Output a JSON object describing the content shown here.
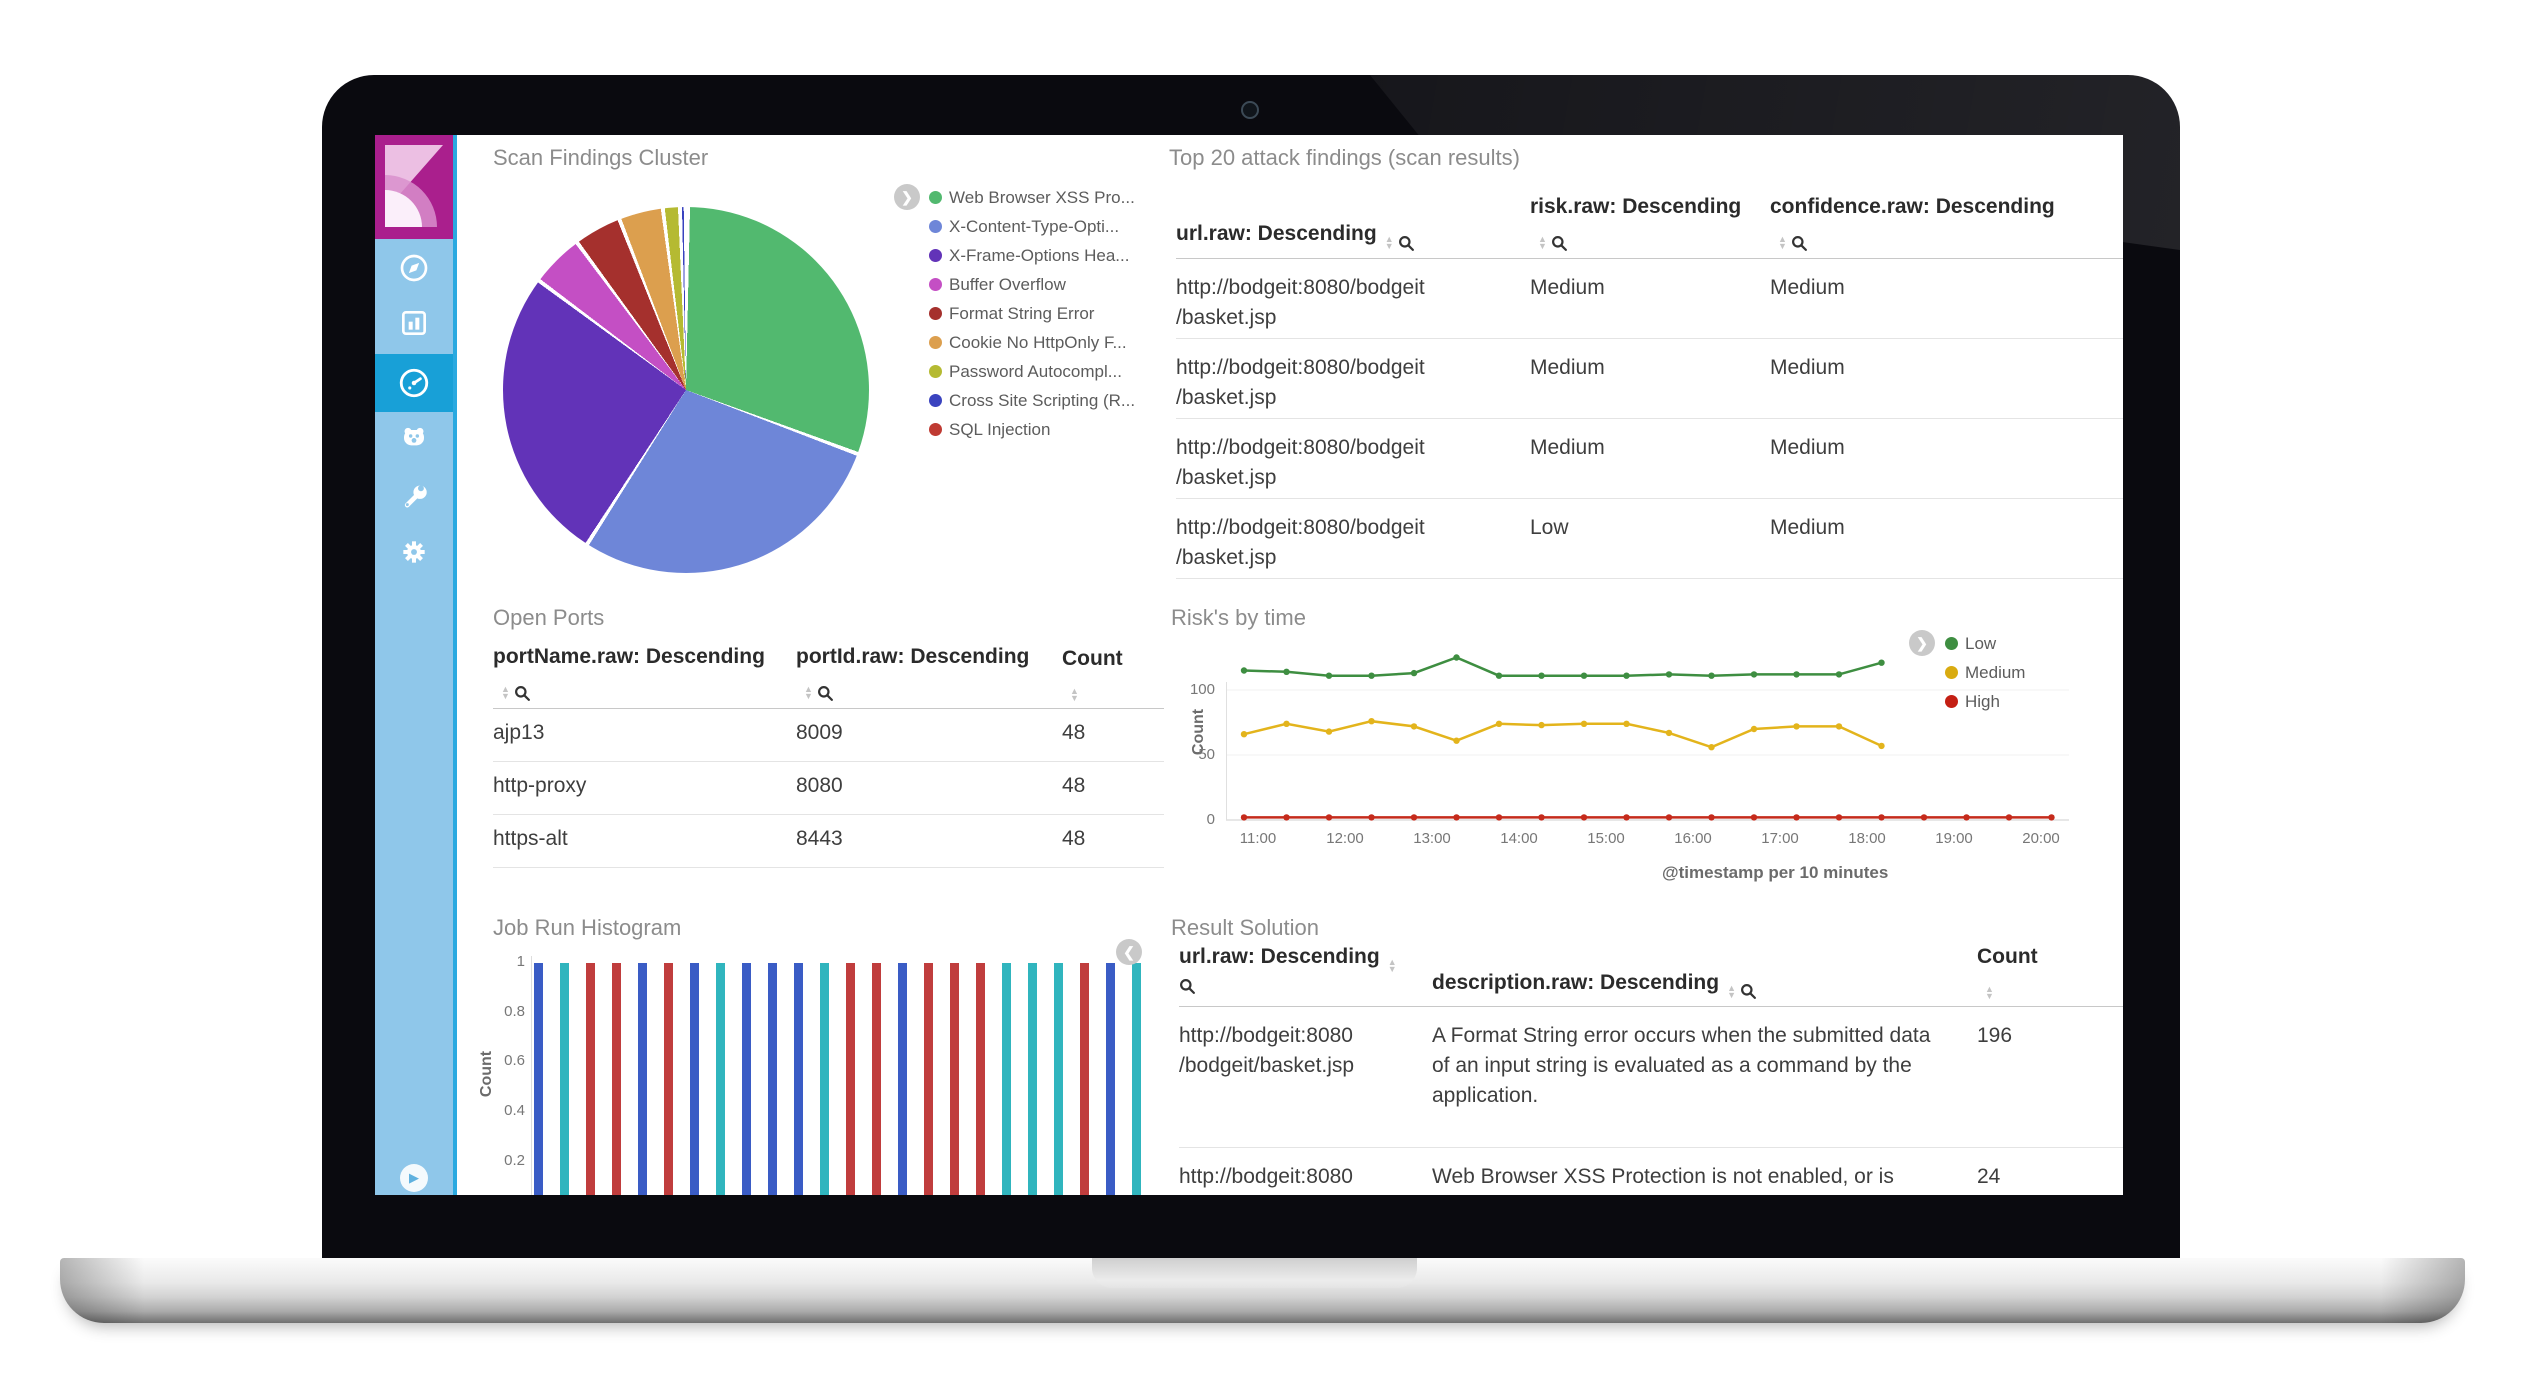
{
  "app": {
    "name": "Kibana dashboard on laptop"
  },
  "sidebar": {
    "logo_icon": "kibana-logo",
    "items": [
      {
        "icon": "compass-icon",
        "active": false
      },
      {
        "icon": "bar-chart-icon",
        "active": false
      },
      {
        "icon": "dashboard-gauge-icon",
        "active": true
      },
      {
        "icon": "timelion-face-icon",
        "active": false
      },
      {
        "icon": "wrench-icon",
        "active": false
      },
      {
        "icon": "gear-icon",
        "active": false
      }
    ],
    "collapse_icon": "chevron-right-icon",
    "colors": {
      "bg": "#8fc7ea",
      "active_bg": "#18a0d7",
      "border": "#2aa9e0",
      "logo_bg": "#aa1f8d"
    }
  },
  "panels": {
    "scan": {
      "title": "Scan Findings Cluster"
    },
    "top20": {
      "title": "Top 20 attack findings (scan results)"
    },
    "ports": {
      "title": "Open Ports"
    },
    "risk": {
      "title": "Risk's by time"
    },
    "histogram": {
      "title": "Job Run Histogram"
    },
    "result": {
      "title": "Result Solution"
    }
  },
  "tables": {
    "top20": {
      "columns": [
        {
          "label": "url.raw: Descending",
          "icons": "inline",
          "sort": true,
          "search": true
        },
        {
          "label": "risk.raw: Descending",
          "icons": "below",
          "sort": true,
          "search": true
        },
        {
          "label": "confidence.raw: Descending",
          "icons": "below",
          "sort": true,
          "search": true
        }
      ],
      "rows": [
        [
          [
            "http://bodgeit:8080/bodgeit",
            "/basket.jsp"
          ],
          "Medium",
          "Medium"
        ],
        [
          [
            "http://bodgeit:8080/bodgeit",
            "/basket.jsp"
          ],
          "Medium",
          "Medium"
        ],
        [
          [
            "http://bodgeit:8080/bodgeit",
            "/basket.jsp"
          ],
          "Medium",
          "Medium"
        ],
        [
          [
            "http://bodgeit:8080/bodgeit",
            "/basket.jsp"
          ],
          "Low",
          "Medium"
        ]
      ]
    },
    "ports": {
      "columns": [
        {
          "label": "portName.raw: Descending",
          "icons": "below",
          "sort": true,
          "search": true
        },
        {
          "label": "portId.raw: Descending",
          "icons": "below",
          "sort": true,
          "search": true
        },
        {
          "label": "Count",
          "icons": "below",
          "sort": true,
          "search": false
        }
      ],
      "rows": [
        [
          "ajp13",
          "8009",
          "48"
        ],
        [
          "http-proxy",
          "8080",
          "48"
        ],
        [
          "https-alt",
          "8443",
          "48"
        ]
      ]
    },
    "result": {
      "columns": [
        {
          "label": "url.raw: Descending",
          "icons": "split",
          "sort": true,
          "search": true
        },
        {
          "label": "description.raw: Descending",
          "icons": "inline",
          "sort": true,
          "search": true
        },
        {
          "label": "Count",
          "icons": "below",
          "sort": true,
          "search": false
        }
      ],
      "rows": [
        [
          [
            "http://bodgeit:8080",
            "/bodgeit/basket.jsp"
          ],
          "A Format String error occurs when the submitted data of an input string is evaluated as a command by the application.",
          "196"
        ],
        [
          [
            "http://bodgeit:8080"
          ],
          "Web Browser XSS Protection is not enabled, or is",
          "24"
        ]
      ]
    }
  },
  "chart_data": [
    {
      "type": "pie",
      "title": "Scan Findings Cluster",
      "labels": [
        "Web Browser XSS Pro...",
        "X-Content-Type-Opti...",
        "X-Frame-Options Hea...",
        "Buffer Overflow",
        "Format String Error",
        "Cookie No HttpOnly F...",
        "Password Autocompl...",
        "Cross Site Scripting (R...",
        "SQL Injection"
      ],
      "values_pct": [
        30.5,
        28.4,
        26.1,
        4.7,
        4.2,
        3.9,
        1.5,
        0.5,
        0.2
      ],
      "colors": [
        "#52b96f",
        "#6e86d8",
        "#6233b8",
        "#c44fc4",
        "#a5302d",
        "#dc9f4e",
        "#b5ba32",
        "#3a43bf",
        "#bf3a32"
      ],
      "legend_position": "right"
    },
    {
      "type": "line",
      "title": "Risk's by time",
      "xlabel": "@timestamp per 10 minutes",
      "ylabel": "Count",
      "ylim": [
        0,
        135
      ],
      "yticks": [
        "0",
        "50",
        "100"
      ],
      "xticks": [
        "11:00",
        "12:00",
        "13:00",
        "14:00",
        "15:00",
        "16:00",
        "17:00",
        "18:00",
        "19:00",
        "20:00"
      ],
      "x_times": [
        "10:50",
        "11:20",
        "11:50",
        "12:20",
        "12:50",
        "13:20",
        "13:50",
        "14:20",
        "14:50",
        "15:20",
        "15:50",
        "16:20",
        "16:50",
        "17:20",
        "17:50",
        "18:20",
        "18:50",
        "19:20",
        "19:50",
        "20:20"
      ],
      "series": [
        {
          "name": "Low",
          "color": "#3e8e41",
          "values": [
            115,
            114,
            111,
            111,
            113,
            125,
            111,
            111,
            111,
            111,
            112,
            111,
            112,
            112,
            112,
            121,
            null,
            null,
            null,
            null
          ]
        },
        {
          "name": "Medium",
          "color": "#e3b41c",
          "values": [
            66,
            74,
            68,
            76,
            72,
            61,
            74,
            73,
            74,
            74,
            67,
            56,
            70,
            72,
            72,
            57,
            null,
            null,
            null,
            null
          ]
        },
        {
          "name": "High",
          "color": "#c52b1c",
          "values": [
            2,
            2,
            2,
            2,
            2,
            2,
            2,
            2,
            2,
            2,
            2,
            2,
            2,
            2,
            2,
            2,
            2,
            2,
            2,
            2
          ]
        }
      ],
      "legend_position": "right",
      "legend_labels": [
        "Low",
        "Medium",
        "High"
      ],
      "legend_colors": [
        "#3e8e41",
        "#d9ab10",
        "#c41f14"
      ]
    },
    {
      "type": "bar",
      "title": "Job Run Histogram",
      "ylabel": "Count",
      "yticks": [
        "1",
        "0.8",
        "0.6",
        "0.4",
        "0.2"
      ],
      "values": [
        1,
        1,
        1,
        1,
        1,
        1,
        1,
        1,
        1,
        1,
        1,
        1,
        1,
        1,
        1,
        1,
        1,
        1,
        1,
        1,
        1,
        1,
        1,
        1
      ],
      "bar_colors": [
        "#3a5cc5",
        "#30b5be",
        "#c03d3d",
        "#c03d3d",
        "#3a5cc5",
        "#c03d3d",
        "#3a5cc5",
        "#30b5be",
        "#3a5cc5",
        "#3a5cc5",
        "#3a5cc5",
        "#30b5be",
        "#c03d3d",
        "#c03d3d",
        "#3a5cc5",
        "#c03d3d",
        "#c03d3d",
        "#c03d3d",
        "#30b5be",
        "#30b5be",
        "#30b5be",
        "#c03d3d",
        "#3a5cc5",
        "#30b5be"
      ]
    }
  ]
}
